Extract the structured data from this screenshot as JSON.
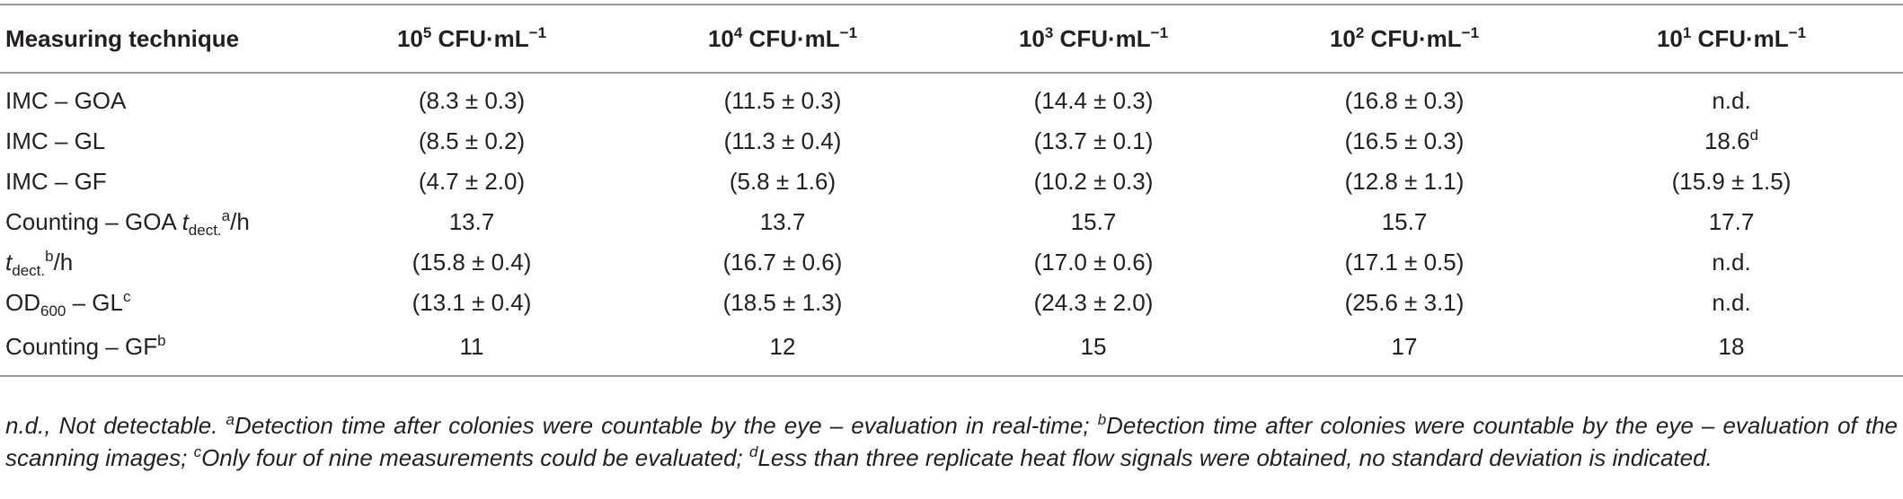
{
  "table": {
    "headers": [
      {
        "base": "Measuring technique",
        "sup": "",
        "unit": "",
        "unit_sup": ""
      },
      {
        "base": "10",
        "sup": "5",
        "unit": " CFU·mL",
        "unit_sup": "−1"
      },
      {
        "base": "10",
        "sup": "4",
        "unit": " CFU·mL",
        "unit_sup": "−1"
      },
      {
        "base": "10",
        "sup": "3",
        "unit": " CFU·mL",
        "unit_sup": "−1"
      },
      {
        "base": "10",
        "sup": "2",
        "unit": " CFU·mL",
        "unit_sup": "−1"
      },
      {
        "base": "10",
        "sup": "1",
        "unit": " CFU·mL",
        "unit_sup": "−1"
      }
    ],
    "rows": [
      {
        "label": {
          "pre": "IMC – GOA"
        },
        "cells": [
          {
            "v": "(8.3 ± 0.3)"
          },
          {
            "v": "(11.5 ± 0.3)"
          },
          {
            "v": "(14.4 ± 0.3)"
          },
          {
            "v": "(16.8 ± 0.3)"
          },
          {
            "v": "n.d."
          }
        ]
      },
      {
        "label": {
          "pre": "IMC – GL"
        },
        "cells": [
          {
            "v": "(8.5 ± 0.2)"
          },
          {
            "v": "(11.3 ± 0.4)"
          },
          {
            "v": "(13.7 ± 0.1)"
          },
          {
            "v": "(16.5 ± 0.3)"
          },
          {
            "v": "18.6",
            "sup": "d"
          }
        ]
      },
      {
        "label": {
          "pre": "IMC – GF"
        },
        "cells": [
          {
            "v": "(4.7 ± 2.0)"
          },
          {
            "v": "(5.8 ± 1.6)"
          },
          {
            "v": "(10.2 ± 0.3)"
          },
          {
            "v": "(12.8 ± 1.1)"
          },
          {
            "v": "(15.9 ± 1.5)"
          }
        ]
      },
      {
        "label": {
          "pre": "Counting – GOA ",
          "it": "t",
          "sub": "dect.",
          "sup": "a",
          "post": "/h"
        },
        "cells": [
          {
            "v": "13.7"
          },
          {
            "v": "13.7"
          },
          {
            "v": "15.7"
          },
          {
            "v": "15.7"
          },
          {
            "v": "17.7"
          }
        ]
      },
      {
        "label": {
          "it": "t",
          "sub": "dect.",
          "sup": "b",
          "post": "/h"
        },
        "cells": [
          {
            "v": "(15.8 ± 0.4)"
          },
          {
            "v": "(16.7 ± 0.6)"
          },
          {
            "v": "(17.0 ± 0.6)"
          },
          {
            "v": "(17.1 ± 0.5)"
          },
          {
            "v": "n.d."
          }
        ]
      },
      {
        "label": {
          "pre": "OD",
          "sub": "600",
          "post": " – GL",
          "sup": "c"
        },
        "cells": [
          {
            "v": "(13.1 ± 0.4)"
          },
          {
            "v": "(18.5 ± 1.3)"
          },
          {
            "v": "(24.3 ± 2.0)"
          },
          {
            "v": "(25.6 ± 3.1)"
          },
          {
            "v": "n.d."
          }
        ]
      },
      {
        "label": {
          "pre": "Counting – GF",
          "sup": "b"
        },
        "cells": [
          {
            "v": "11"
          },
          {
            "v": "12"
          },
          {
            "v": "15"
          },
          {
            "v": "17"
          },
          {
            "v": "18"
          }
        ]
      }
    ]
  },
  "footnote": {
    "nd": "n.d., Not detectable.",
    "a_mark": "a",
    "a_text": "Detection time after colonies were countable by the eye – evaluation in real-time;",
    "b_mark": "b",
    "b_text": "Detection time after colonies were countable by the eye – evaluation of the scanning images;",
    "c_mark": "c",
    "c_text": "Only four of nine measurements could be evaluated;",
    "d_mark": "d",
    "d_text": "Less than three replicate heat flow signals were obtained, no standard deviation is indicated."
  }
}
